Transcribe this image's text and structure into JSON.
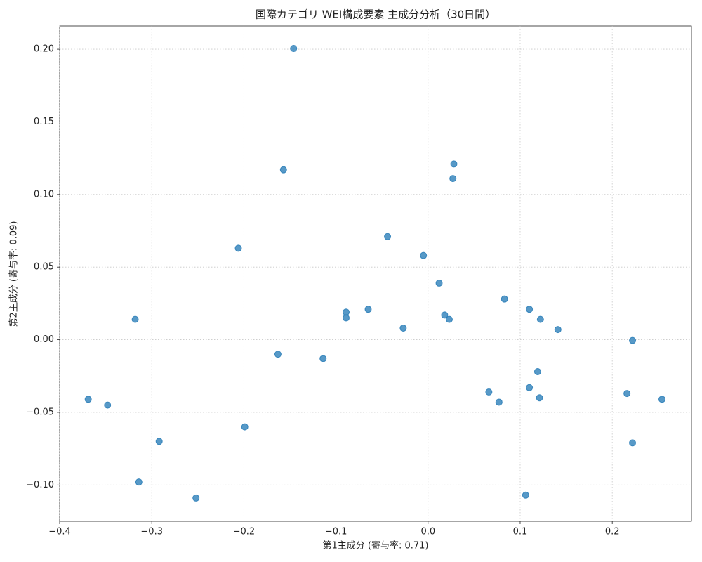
{
  "chart_data": {
    "type": "scatter",
    "title": "国際カテゴリ WEI構成要素 主成分分析（30日間）",
    "x_label": "第1主成分 (寄与率: 0.71)",
    "y_label": "第2主成分 (寄与率: 0.09)",
    "xlim": [
      -0.4,
      0.286
    ],
    "ylim": [
      -0.125,
      0.216
    ],
    "xticks": [
      {
        "value": -0.4,
        "label": "−0.4"
      },
      {
        "value": -0.3,
        "label": "−0.3"
      },
      {
        "value": -0.2,
        "label": "−0.2"
      },
      {
        "value": -0.1,
        "label": "−0.1"
      },
      {
        "value": 0,
        "label": "0.0"
      },
      0.1,
      0.2
    ],
    "yticks": [
      {
        "value": -0.1,
        "label": "−0.10"
      },
      {
        "value": -0.05,
        "label": "−0.05"
      },
      {
        "value": 0,
        "label": "0.00"
      },
      {
        "value": 0.05,
        "label": "0.05"
      },
      {
        "value": 0.1,
        "label": "0.10"
      },
      {
        "value": 0.15,
        "label": "0.15"
      },
      {
        "value": 0.2,
        "label": "0.20"
      }
    ],
    "grid": true,
    "color": "#1f77b4",
    "x": [
      -0.146,
      -0.157,
      0.028,
      0.027,
      -0.206,
      -0.044,
      -0.005,
      0.012,
      0.083,
      0.11,
      -0.065,
      -0.089,
      -0.089,
      0.018,
      0.023,
      0.122,
      -0.318,
      -0.027,
      0.141,
      0.222,
      -0.163,
      -0.114,
      0.119,
      0.066,
      0.11,
      0.216,
      0.121,
      0.077,
      0.254,
      -0.369,
      -0.348,
      -0.199,
      -0.292,
      0.222,
      -0.314,
      0.106,
      -0.252
    ],
    "y": [
      0.2005,
      0.117,
      0.121,
      0.111,
      0.063,
      0.071,
      0.058,
      0.039,
      0.028,
      0.021,
      0.021,
      0.019,
      0.015,
      0.017,
      0.014,
      0.014,
      0.014,
      0.008,
      0.007,
      -0.0005,
      -0.01,
      -0.013,
      -0.022,
      -0.036,
      -0.033,
      -0.037,
      -0.04,
      -0.043,
      -0.041,
      -0.041,
      -0.045,
      -0.06,
      -0.07,
      -0.071,
      -0.098,
      -0.107,
      -0.109
    ]
  }
}
